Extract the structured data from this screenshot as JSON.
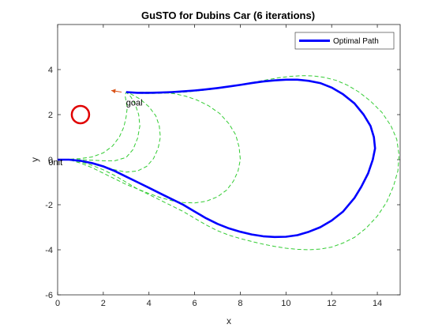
{
  "chart_data": {
    "type": "line",
    "title": "GuSTO for Dubins Car (6 iterations)",
    "xlabel": "x",
    "ylabel": "y",
    "xlim": [
      0,
      15
    ],
    "ylim": [
      -6,
      6
    ],
    "xticks": [
      0,
      2,
      4,
      6,
      8,
      10,
      12,
      14
    ],
    "yticks": [
      -6,
      -4,
      -2,
      0,
      2,
      4
    ],
    "grid": false,
    "legend": {
      "location": "top-right",
      "entries": [
        "Optimal Path"
      ]
    },
    "colors": {
      "optimal_path": "#0000ff",
      "iterations": "#33cc33",
      "obstacle": "#e00000",
      "goal_arrow": "#d95319"
    },
    "annotations": [
      {
        "text": "goal",
        "x": 3.0,
        "y": 2.55
      },
      {
        "text": "0nit",
        "x": -0.4,
        "y": -0.1
      }
    ],
    "obstacle": {
      "center": [
        1.0,
        2.0
      ],
      "radius": 0.38
    },
    "goal_arrow": {
      "from": [
        2.8,
        3.0
      ],
      "to": [
        2.35,
        3.07
      ]
    },
    "series": [
      {
        "name": "Optimal Path",
        "style": "solid",
        "x": [
          0,
          0.5,
          1.0,
          1.5,
          2.0,
          2.5,
          3.0,
          3.5,
          4.0,
          4.5,
          5.0,
          5.5,
          6.0,
          6.5,
          7.0,
          7.5,
          8.0,
          8.5,
          9.0,
          9.5,
          10.0,
          10.5,
          11.0,
          11.5,
          12.0,
          12.5,
          13.0,
          13.3,
          13.6,
          13.8,
          13.9,
          13.85,
          13.7,
          13.4,
          13.0,
          12.5,
          12.0,
          11.5,
          11.0,
          10.5,
          10.0,
          9.5,
          9.0,
          8.5,
          8.0,
          7.5,
          7.0,
          6.5,
          6.0,
          5.5,
          5.0,
          4.5,
          4.0,
          3.5,
          3.0
        ],
        "y": [
          0,
          0.0,
          -0.05,
          -0.15,
          -0.3,
          -0.5,
          -0.75,
          -1.0,
          -1.25,
          -1.5,
          -1.75,
          -2.0,
          -2.3,
          -2.6,
          -2.85,
          -3.05,
          -3.2,
          -3.32,
          -3.4,
          -3.43,
          -3.42,
          -3.35,
          -3.2,
          -3.0,
          -2.7,
          -2.3,
          -1.7,
          -1.2,
          -0.6,
          0.0,
          0.5,
          1.0,
          1.5,
          2.0,
          2.5,
          2.9,
          3.2,
          3.4,
          3.5,
          3.55,
          3.55,
          3.52,
          3.47,
          3.4,
          3.32,
          3.25,
          3.18,
          3.12,
          3.07,
          3.03,
          3.0,
          2.98,
          2.97,
          2.97,
          3.0
        ]
      },
      {
        "name": "",
        "style": "dashed",
        "x": [
          0,
          0.5,
          1.0,
          1.5,
          2.0,
          2.5,
          3.0,
          3.5,
          4.0,
          4.5,
          5.0,
          5.5,
          6.0,
          6.5,
          7.0,
          7.5,
          8.0,
          8.5,
          9.0,
          9.5,
          10.0,
          10.5,
          11.0,
          11.5,
          12.0,
          12.5,
          13.0,
          13.5,
          14.0,
          14.4,
          14.7,
          14.9,
          14.95,
          14.85,
          14.6,
          14.2,
          13.7,
          13.2,
          12.7,
          12.2,
          11.7,
          11.2,
          10.7,
          10.2,
          9.7,
          9.2,
          8.7,
          8.2,
          7.7,
          7.2,
          6.7,
          6.2,
          5.7,
          5.2,
          4.7,
          4.2,
          3.7,
          3.2,
          3.0
        ],
        "y": [
          0,
          0.0,
          -0.1,
          -0.25,
          -0.45,
          -0.7,
          -1.0,
          -1.3,
          -1.55,
          -1.8,
          -2.05,
          -2.3,
          -2.6,
          -2.9,
          -3.15,
          -3.35,
          -3.5,
          -3.63,
          -3.75,
          -3.85,
          -3.93,
          -3.98,
          -4.0,
          -3.97,
          -3.88,
          -3.7,
          -3.45,
          -3.05,
          -2.5,
          -1.9,
          -1.2,
          -0.5,
          0.2,
          0.9,
          1.5,
          2.1,
          2.6,
          3.0,
          3.3,
          3.52,
          3.65,
          3.72,
          3.73,
          3.7,
          3.64,
          3.55,
          3.46,
          3.37,
          3.28,
          3.2,
          3.12,
          3.06,
          3.01,
          2.98,
          2.95,
          2.94,
          2.94,
          2.96,
          3.0
        ]
      },
      {
        "name": "",
        "style": "dashed",
        "x": [
          0,
          0.5,
          1.0,
          1.5,
          2.0,
          2.5,
          3.0,
          3.5,
          4.0,
          4.5,
          5.0,
          5.5,
          6.0,
          6.5,
          7.0,
          7.4,
          7.7,
          7.9,
          8.0,
          7.95,
          7.8,
          7.5,
          7.1,
          6.6,
          6.1,
          5.6,
          5.1,
          4.6,
          4.1,
          3.6,
          3.1,
          3.0
        ],
        "y": [
          0,
          0.0,
          -0.15,
          -0.35,
          -0.6,
          -0.85,
          -1.1,
          -1.3,
          -1.5,
          -1.68,
          -1.82,
          -1.9,
          -1.92,
          -1.85,
          -1.65,
          -1.35,
          -0.95,
          -0.5,
          0.0,
          0.55,
          1.1,
          1.6,
          2.05,
          2.4,
          2.65,
          2.82,
          2.93,
          2.98,
          3.0,
          3.0,
          2.99,
          3.0
        ]
      },
      {
        "name": "",
        "style": "dashed",
        "x": [
          0,
          0.5,
          1.0,
          1.5,
          2.0,
          2.5,
          3.0,
          3.5,
          3.9,
          4.2,
          4.4,
          4.5,
          4.45,
          4.3,
          4.0,
          3.6,
          3.2,
          3.0
        ],
        "y": [
          0,
          0.0,
          -0.05,
          -0.15,
          -0.3,
          -0.45,
          -0.55,
          -0.5,
          -0.3,
          0.05,
          0.5,
          1.0,
          1.5,
          1.95,
          2.35,
          2.7,
          2.92,
          3.0
        ]
      },
      {
        "name": "",
        "style": "dashed",
        "x": [
          0,
          0.5,
          1.0,
          1.5,
          2.0,
          2.5,
          3.0,
          3.3,
          3.5,
          3.6,
          3.55,
          3.4,
          3.2,
          3.0
        ],
        "y": [
          0,
          0.0,
          0.0,
          -0.02,
          -0.05,
          -0.05,
          0.1,
          0.45,
          0.95,
          1.5,
          2.0,
          2.45,
          2.8,
          3.0
        ]
      },
      {
        "name": "",
        "style": "dashed",
        "x": [
          0,
          0.5,
          1.0,
          1.5,
          2.0,
          2.4,
          2.7,
          2.9,
          3.0,
          3.05,
          3.0,
          2.95,
          3.0
        ],
        "y": [
          0,
          0.02,
          0.05,
          0.12,
          0.3,
          0.6,
          1.0,
          1.45,
          1.9,
          2.3,
          2.6,
          2.85,
          3.0
        ]
      }
    ]
  }
}
